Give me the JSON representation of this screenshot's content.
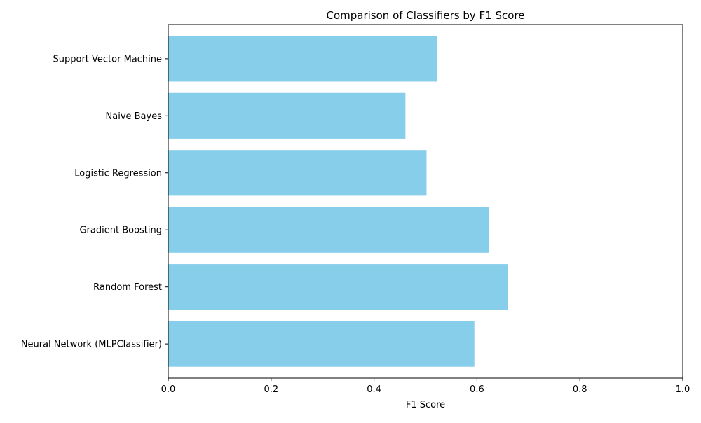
{
  "chart_data": {
    "type": "bar",
    "orientation": "horizontal",
    "title": "Comparison of Classifiers by F1 Score",
    "xlabel": "F1 Score",
    "ylabel": "",
    "categories": [
      "Neural Network (MLPClassifier)",
      "Random Forest",
      "Gradient Boosting",
      "Logistic Regression",
      "Naive Bayes",
      "Support Vector Machine"
    ],
    "values": [
      0.595,
      0.66,
      0.624,
      0.502,
      0.461,
      0.522
    ],
    "xlim": [
      0.0,
      1.0
    ],
    "xticks": [
      "0.0",
      "0.2",
      "0.4",
      "0.6",
      "0.8",
      "1.0"
    ],
    "grid": false,
    "legend": false,
    "colors": {
      "bar": "#87ceeb",
      "axis": "#000000"
    }
  }
}
